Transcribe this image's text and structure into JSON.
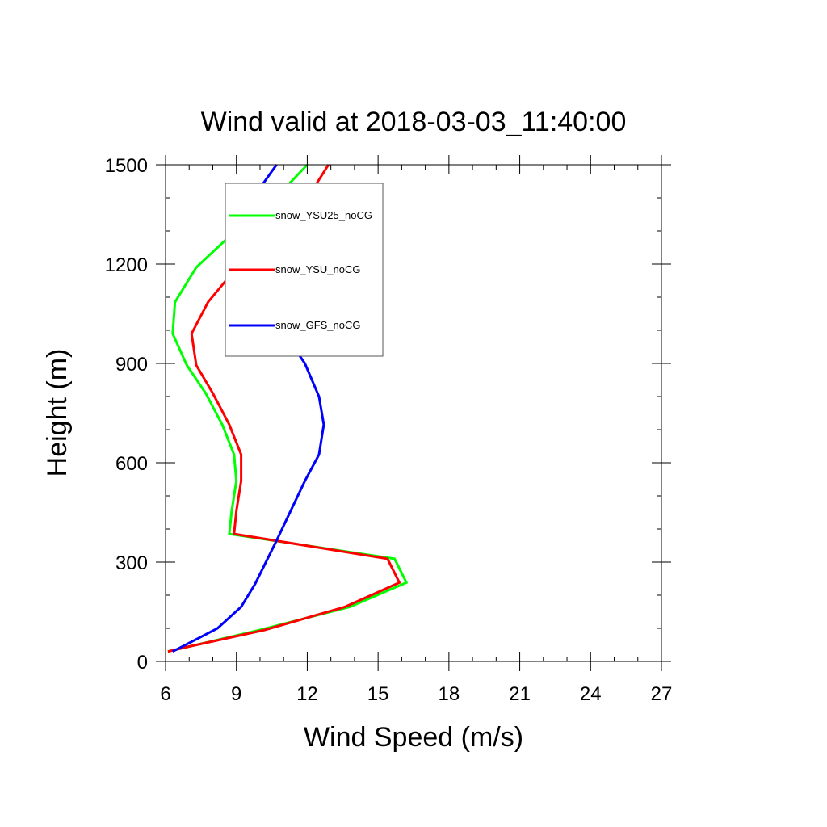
{
  "chart_data": {
    "type": "line",
    "title": "Wind valid at 2018-03-03_11:40:00",
    "xlabel": "Wind Speed (m/s)",
    "ylabel": "Height (m)",
    "xlim": [
      6,
      27
    ],
    "ylim": [
      0,
      1500
    ],
    "x_ticks": [
      6,
      9,
      12,
      15,
      18,
      21,
      24,
      27
    ],
    "y_ticks": [
      0,
      300,
      600,
      900,
      1200,
      1500
    ],
    "x_minor_step": 1,
    "y_minor_step": 100,
    "grid": false,
    "legend_position": "top-left (inside)",
    "series": [
      {
        "name": "snow_YSU25_noCG",
        "color": "#00ff00",
        "points": [
          [
            6.1,
            30
          ],
          [
            7.0,
            45
          ],
          [
            10.0,
            95
          ],
          [
            13.8,
            165
          ],
          [
            16.2,
            238
          ],
          [
            15.7,
            310
          ],
          [
            8.7,
            385
          ],
          [
            8.8,
            455
          ],
          [
            9.0,
            545
          ],
          [
            8.9,
            625
          ],
          [
            8.4,
            715
          ],
          [
            7.7,
            810
          ],
          [
            6.9,
            895
          ],
          [
            6.3,
            990
          ],
          [
            6.4,
            1085
          ],
          [
            7.3,
            1190
          ],
          [
            8.8,
            1290
          ],
          [
            9.6,
            1330
          ],
          [
            10.8,
            1410
          ],
          [
            12.0,
            1500
          ]
        ]
      },
      {
        "name": "snow_YSU_noCG",
        "color": "#ff0000",
        "points": [
          [
            6.1,
            30
          ],
          [
            7.0,
            45
          ],
          [
            10.2,
            95
          ],
          [
            13.6,
            165
          ],
          [
            15.9,
            238
          ],
          [
            15.4,
            310
          ],
          [
            8.9,
            385
          ],
          [
            9.0,
            455
          ],
          [
            9.2,
            545
          ],
          [
            9.2,
            625
          ],
          [
            8.7,
            715
          ],
          [
            8.0,
            810
          ],
          [
            7.3,
            895
          ],
          [
            7.1,
            990
          ],
          [
            7.8,
            1085
          ],
          [
            8.9,
            1180
          ],
          [
            10.0,
            1270
          ],
          [
            11.0,
            1330
          ],
          [
            12.1,
            1410
          ],
          [
            12.9,
            1500
          ]
        ]
      },
      {
        "name": "snow_GFS_noCG",
        "color": "#0000ff",
        "points": [
          [
            6.3,
            30
          ],
          [
            8.2,
            100
          ],
          [
            9.2,
            165
          ],
          [
            9.8,
            235
          ],
          [
            10.7,
            365
          ],
          [
            11.9,
            545
          ],
          [
            12.5,
            625
          ],
          [
            12.7,
            715
          ],
          [
            12.5,
            800
          ],
          [
            11.9,
            900
          ],
          [
            10.8,
            1015
          ],
          [
            9.8,
            1085
          ],
          [
            8.9,
            1185
          ],
          [
            8.9,
            1290
          ],
          [
            9.1,
            1330
          ],
          [
            9.8,
            1410
          ],
          [
            10.7,
            1500
          ]
        ]
      }
    ]
  }
}
